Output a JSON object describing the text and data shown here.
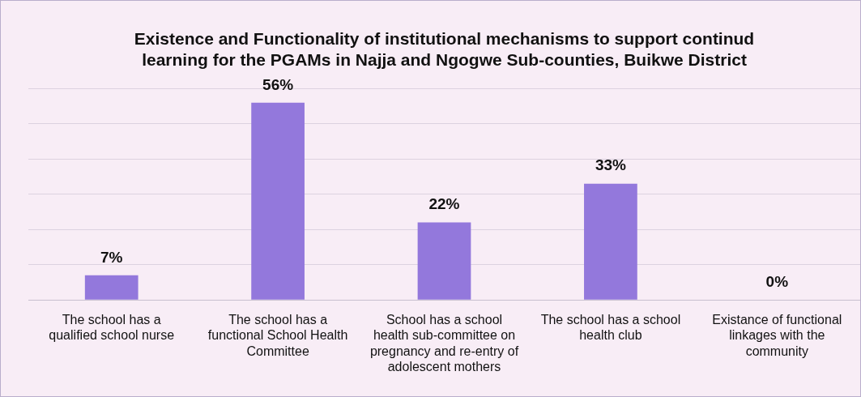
{
  "chart_data": {
    "type": "bar",
    "title": "Existence and Functionality of institutional mechanisms to support continud learning for the PGAMs in Najja and Ngogwe Sub-counties, Buikwe District",
    "categories": [
      "The school has a qualified school nurse",
      "The school has a functional School Health Committee",
      "School has a school health sub-committee on pregnancy and re-entry of adolescent mothers",
      "The school has a school health club",
      "Existance of functional linkages with the community"
    ],
    "values": [
      7,
      56,
      22,
      33,
      0
    ],
    "value_labels": [
      "7%",
      "56%",
      "22%",
      "33%",
      "0%"
    ],
    "color": "#9378dc",
    "ylim": [
      0,
      60
    ],
    "yticks": [
      {
        "value": 0,
        "label": null
      },
      {
        "value": 10,
        "label": null
      },
      {
        "value": 20,
        "label": null
      },
      {
        "value": 30,
        "label": null
      },
      {
        "value": 40,
        "label": null
      },
      {
        "value": 50,
        "label": null
      },
      {
        "value": 60,
        "label": null
      }
    ],
    "grid": "y",
    "tick_labels": "x",
    "legend": false
  }
}
